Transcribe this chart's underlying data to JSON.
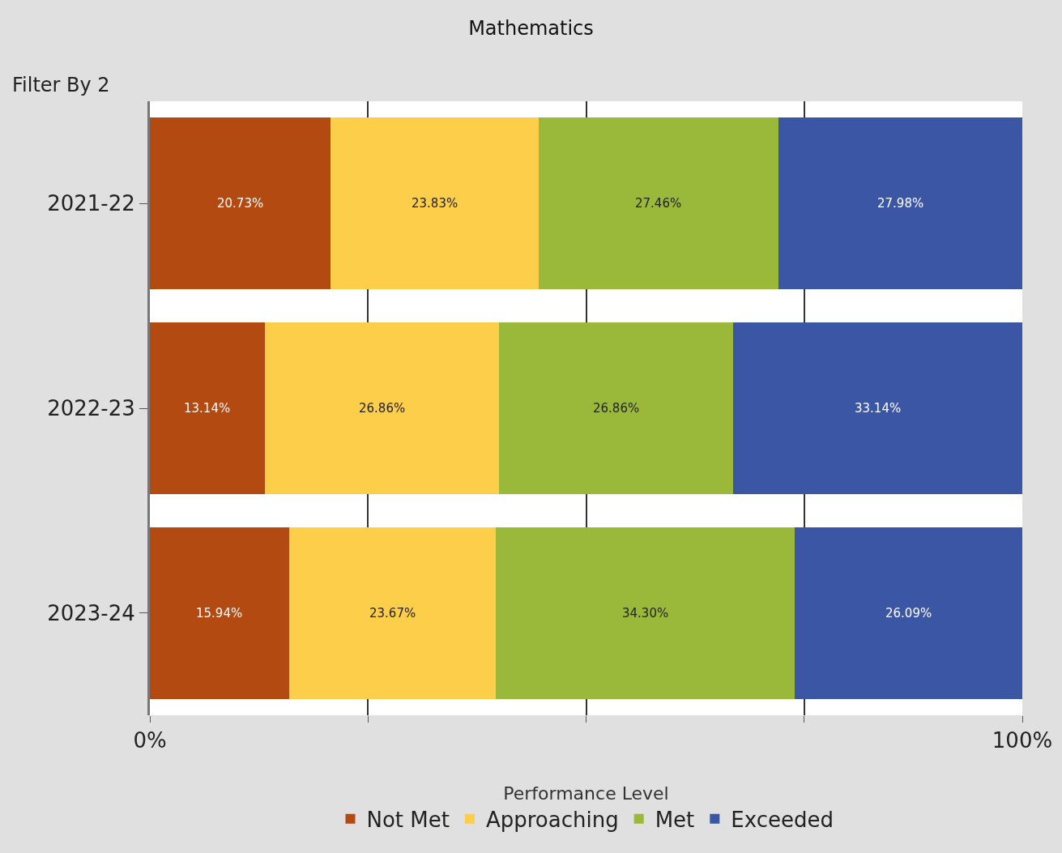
{
  "chart_data": {
    "type": "bar",
    "orientation": "horizontal",
    "stacked": true,
    "title": "Mathematics",
    "ylabel": "Filter By 2",
    "legend_title": "Performance Level",
    "legend": "bottom",
    "grid": "x",
    "categories": [
      "2021-22",
      "2022-23",
      "2023-24"
    ],
    "xlim": [
      0,
      100
    ],
    "xticks": [
      {
        "value": 0,
        "label": "0%"
      },
      {
        "value": 25,
        "label": null
      },
      {
        "value": 50,
        "label": null
      },
      {
        "value": 75,
        "label": null
      },
      {
        "value": 100,
        "label": "100%"
      }
    ],
    "series": [
      {
        "name": "Not Met",
        "color": "#b34a12",
        "values": [
          20.73,
          13.14,
          15.94
        ],
        "value_labels": [
          "20.73%",
          "13.14%",
          "15.94%"
        ]
      },
      {
        "name": "Approaching",
        "color": "#fdce4a",
        "values": [
          23.83,
          26.86,
          23.67
        ],
        "value_labels": [
          "23.83%",
          "26.86%",
          "23.67%"
        ]
      },
      {
        "name": "Met",
        "color": "#9ab93a",
        "values": [
          27.46,
          26.86,
          34.3
        ],
        "value_labels": [
          "27.46%",
          "26.86%",
          "34.30%"
        ]
      },
      {
        "name": "Exceeded",
        "color": "#3b56a5",
        "values": [
          27.98,
          33.14,
          26.09
        ],
        "value_labels": [
          "27.98%",
          "33.14%",
          "26.09%"
        ]
      }
    ]
  }
}
